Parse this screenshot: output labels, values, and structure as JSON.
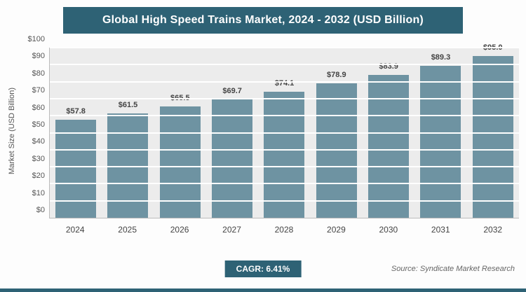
{
  "header": {
    "title": "Global High Speed Trains Market, 2024 - 2032 (USD Billion)"
  },
  "chart_data": {
    "type": "bar",
    "title": "Global High Speed Trains Market, 2024 - 2032 (USD Billion)",
    "categories": [
      "2024",
      "2025",
      "2026",
      "2027",
      "2028",
      "2029",
      "2030",
      "2031",
      "2032"
    ],
    "values": [
      57.8,
      61.5,
      65.5,
      69.7,
      74.1,
      78.9,
      83.9,
      89.3,
      95.0
    ],
    "value_labels": [
      "$57.8",
      "$61.5",
      "$65.5",
      "$69.7",
      "$74.1",
      "$78.9",
      "$83.9",
      "$89.3",
      "$95.0"
    ],
    "xlabel": "",
    "ylabel": "Market Size (USD Billion)",
    "ylim": [
      0,
      100
    ],
    "ytick_step": 10,
    "ytick_prefix": "$",
    "grid": true,
    "legend": false,
    "bar_color": "#6e93a2"
  },
  "footer": {
    "cagr_label": "CAGR: 6.41%",
    "source": "Source: Syndicate Market Research"
  },
  "colors": {
    "accent": "#2e6275",
    "bar": "#6e93a2",
    "plot_bg": "#ececec",
    "gridline": "#ffffff"
  }
}
